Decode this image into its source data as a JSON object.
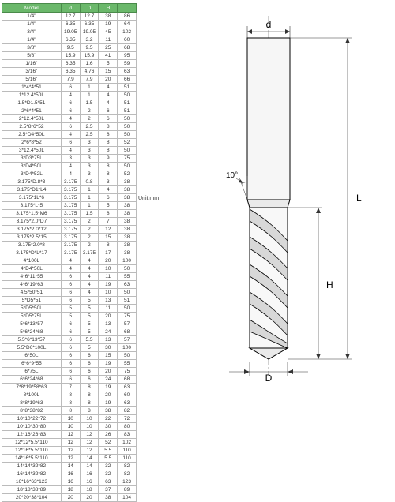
{
  "unit_label": "Unit:mm",
  "table": {
    "header_bg": "#6bb86b",
    "columns": [
      "Model",
      "d",
      "D",
      "H",
      "L"
    ],
    "rows": [
      [
        "1/4\"",
        "12.7",
        "12.7",
        "38",
        "86"
      ],
      [
        "1/4\"",
        "6.35",
        "6.35",
        "19",
        "64"
      ],
      [
        "3/4\"",
        "19.05",
        "19.05",
        "45",
        "102"
      ],
      [
        "1/4\"",
        "6.35",
        "3.2",
        "11",
        "60"
      ],
      [
        "3/8\"",
        "9.5",
        "9.5",
        "25",
        "68"
      ],
      [
        "5/8\"",
        "15.9",
        "15.9",
        "41",
        "95"
      ],
      [
        "1/16\"",
        "6.35",
        "1.6",
        "5",
        "59"
      ],
      [
        "3/16\"",
        "6.35",
        "4.76",
        "15",
        "63"
      ],
      [
        "5/16\"",
        "7.9",
        "7.9",
        "20",
        "66"
      ],
      [
        "1*4*4*51",
        "6",
        "1",
        "4",
        "51"
      ],
      [
        "1*12.4*50L",
        "4",
        "1",
        "4",
        "50"
      ],
      [
        "1.5*D1.5*51",
        "6",
        "1.5",
        "4",
        "51"
      ],
      [
        "2*6*4*51",
        "6",
        "2",
        "6",
        "51"
      ],
      [
        "2*12.4*50L",
        "4",
        "2",
        "6",
        "50"
      ],
      [
        "2.5*8*6*52",
        "6",
        "2.5",
        "8",
        "50"
      ],
      [
        "2.5*D4*50L",
        "4",
        "2.5",
        "8",
        "50"
      ],
      [
        "2*6*8*52",
        "6",
        "3",
        "8",
        "52"
      ],
      [
        "3*12.4*50L",
        "4",
        "3",
        "8",
        "50"
      ],
      [
        "3*D3*75L",
        "3",
        "3",
        "9",
        "75"
      ],
      [
        "3*D4*50L",
        "4",
        "3",
        "8",
        "50"
      ],
      [
        "3*D4*52L",
        "4",
        "3",
        "8",
        "52"
      ],
      [
        "3.175*D.8*3",
        "3.175",
        "0.8",
        "3",
        "38"
      ],
      [
        "3.175*D1*L4",
        "3.175",
        "1",
        "4",
        "38"
      ],
      [
        "3.175*1L*6",
        "3.175",
        "1",
        "6",
        "38"
      ],
      [
        "3.175*L*5",
        "3.175",
        "1",
        "5",
        "38"
      ],
      [
        "3.175*1.5*M6",
        "3.175",
        "1.5",
        "8",
        "38"
      ],
      [
        "3.175*2.0*D7",
        "3.175",
        "2",
        "7",
        "38"
      ],
      [
        "3.175*2.0*12",
        "3.175",
        "2",
        "12",
        "38"
      ],
      [
        "3.175*2.5*15",
        "3.175",
        "2",
        "15",
        "38"
      ],
      [
        "3.175*2.0*8",
        "3.175",
        "2",
        "8",
        "38"
      ],
      [
        "3.175*D*L*17",
        "3.175",
        "3.175",
        "17",
        "38"
      ],
      [
        "4*100L",
        "4",
        "4",
        "20",
        "100"
      ],
      [
        "4*D4*50L",
        "4",
        "4",
        "10",
        "50"
      ],
      [
        "4*6*11*55",
        "6",
        "4",
        "11",
        "55"
      ],
      [
        "4*6*19*63",
        "6",
        "4",
        "19",
        "63"
      ],
      [
        "4.5*50*51",
        "6",
        "4",
        "10",
        "50"
      ],
      [
        "5*D5*51",
        "6",
        "5",
        "13",
        "51"
      ],
      [
        "5*D5*50L",
        "5",
        "5",
        "11",
        "50"
      ],
      [
        "5*D5*75L",
        "5",
        "5",
        "20",
        "75"
      ],
      [
        "5*6*13*57",
        "6",
        "5",
        "13",
        "57"
      ],
      [
        "5*6*24*68",
        "6",
        "5",
        "24",
        "68"
      ],
      [
        "5.5*6*13*57",
        "6",
        "5.5",
        "13",
        "57"
      ],
      [
        "5.5*D6*100L",
        "6",
        "5",
        "30",
        "100"
      ],
      [
        "6*50L",
        "6",
        "6",
        "15",
        "50"
      ],
      [
        "6*6*9*55",
        "6",
        "6",
        "19",
        "55"
      ],
      [
        "6*75L",
        "6",
        "6",
        "20",
        "75"
      ],
      [
        "6*6*24*68",
        "6",
        "6",
        "24",
        "68"
      ],
      [
        "7*8*19*58*63",
        "7",
        "8",
        "19",
        "63"
      ],
      [
        "8*100L",
        "8",
        "8",
        "20",
        "60"
      ],
      [
        "8*8*19*63",
        "8",
        "8",
        "19",
        "63"
      ],
      [
        "8*8*38*82",
        "8",
        "8",
        "38",
        "82"
      ],
      [
        "10*10*22*72",
        "10",
        "10",
        "22",
        "72"
      ],
      [
        "10*10*30*80",
        "10",
        "10",
        "30",
        "80"
      ],
      [
        "12*16*26*83",
        "12",
        "12",
        "26",
        "83"
      ],
      [
        "12*12*5.5*110",
        "12",
        "12",
        "52",
        "102"
      ],
      [
        "12*16*5.5*110",
        "12",
        "12",
        "5.5",
        "110"
      ],
      [
        "14*16*5.5*110",
        "12",
        "14",
        "5.5",
        "110"
      ],
      [
        "14*14*32*82",
        "14",
        "14",
        "32",
        "82"
      ],
      [
        "16*14*32*82",
        "16",
        "16",
        "32",
        "82"
      ],
      [
        "16*16*63*123",
        "16",
        "16",
        "63",
        "123"
      ],
      [
        "18*18*38*89",
        "18",
        "18",
        "37",
        "89"
      ],
      [
        "20*20*38*104",
        "20",
        "20",
        "38",
        "104"
      ]
    ]
  },
  "diagram": {
    "labels": {
      "d": "d",
      "D": "D",
      "H": "H",
      "L": "L",
      "angle": "10°"
    },
    "colors": {
      "line": "#000000",
      "dim_line": "#333333",
      "center_line": "#666666",
      "fill": "#f4f4f4",
      "shade": "#d8d8d8"
    },
    "fontsize": 12
  }
}
